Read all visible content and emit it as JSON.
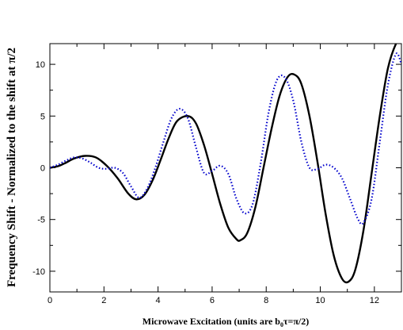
{
  "chart_data": {
    "type": "line",
    "xlabel_prefix": "Microwave Excitation (units are b",
    "xlabel_sub": "0",
    "xlabel_suffix": "τ=π/2)",
    "ylabel": "Frequency Shift - Normalized to the shift at π/2",
    "xlim": [
      0,
      13
    ],
    "ylim": [
      -12,
      12
    ],
    "x_ticks": [
      0,
      2,
      4,
      6,
      8,
      10,
      12
    ],
    "y_ticks": [
      -10,
      -5,
      0,
      5,
      10
    ],
    "grid": false,
    "series": [
      {
        "style": "solid",
        "color": "#000000",
        "x": [
          0,
          0.3,
          0.6,
          0.9,
          1.3,
          1.7,
          2.1,
          2.5,
          2.9,
          3.2,
          3.5,
          3.8,
          4.1,
          4.4,
          4.7,
          5.1,
          5.4,
          5.7,
          6.0,
          6.3,
          6.6,
          6.9,
          7.05,
          7.3,
          7.6,
          7.9,
          8.2,
          8.5,
          8.8,
          9.05,
          9.3,
          9.6,
          9.9,
          10.2,
          10.5,
          10.8,
          11.05,
          11.3,
          11.6,
          11.9,
          12.2,
          12.5,
          12.8,
          13.0
        ],
        "y": [
          0,
          0.15,
          0.5,
          0.9,
          1.15,
          1.0,
          0.2,
          -1.0,
          -2.5,
          -3.05,
          -2.6,
          -1.2,
          0.8,
          2.9,
          4.5,
          5.0,
          4.3,
          2.2,
          -0.6,
          -3.5,
          -5.8,
          -6.9,
          -7.0,
          -6.3,
          -3.8,
          0.0,
          3.8,
          7.0,
          8.8,
          9.0,
          8.1,
          5.0,
          0.5,
          -4.5,
          -8.5,
          -10.7,
          -11.0,
          -9.8,
          -6.0,
          -0.5,
          5.0,
          9.6,
          12.0,
          12.5
        ]
      },
      {
        "style": "dotted",
        "color": "#0000cc",
        "x": [
          0,
          0.3,
          0.6,
          0.9,
          1.2,
          1.5,
          1.8,
          2.1,
          2.4,
          2.7,
          3.0,
          3.3,
          3.6,
          3.9,
          4.2,
          4.5,
          4.8,
          5.1,
          5.4,
          5.7,
          6.0,
          6.3,
          6.6,
          6.9,
          7.2,
          7.5,
          7.8,
          8.1,
          8.4,
          8.7,
          9.0,
          9.3,
          9.6,
          9.9,
          10.2,
          10.5,
          10.8,
          11.1,
          11.4,
          11.6,
          11.9,
          12.2,
          12.5,
          12.8,
          13.0
        ],
        "y": [
          0,
          0.3,
          0.7,
          1.0,
          0.9,
          0.5,
          0.0,
          -0.1,
          0.0,
          -0.5,
          -1.8,
          -2.9,
          -2.0,
          0.0,
          2.5,
          4.8,
          5.7,
          4.8,
          2.0,
          -0.5,
          -0.3,
          0.2,
          -0.6,
          -3.0,
          -4.4,
          -3.5,
          0.5,
          5.5,
          8.5,
          8.7,
          6.5,
          2.5,
          0.0,
          -0.1,
          0.3,
          0.0,
          -1.0,
          -3.0,
          -5.0,
          -5.3,
          -3.0,
          2.5,
          8.0,
          11.0,
          10.0
        ]
      }
    ]
  }
}
